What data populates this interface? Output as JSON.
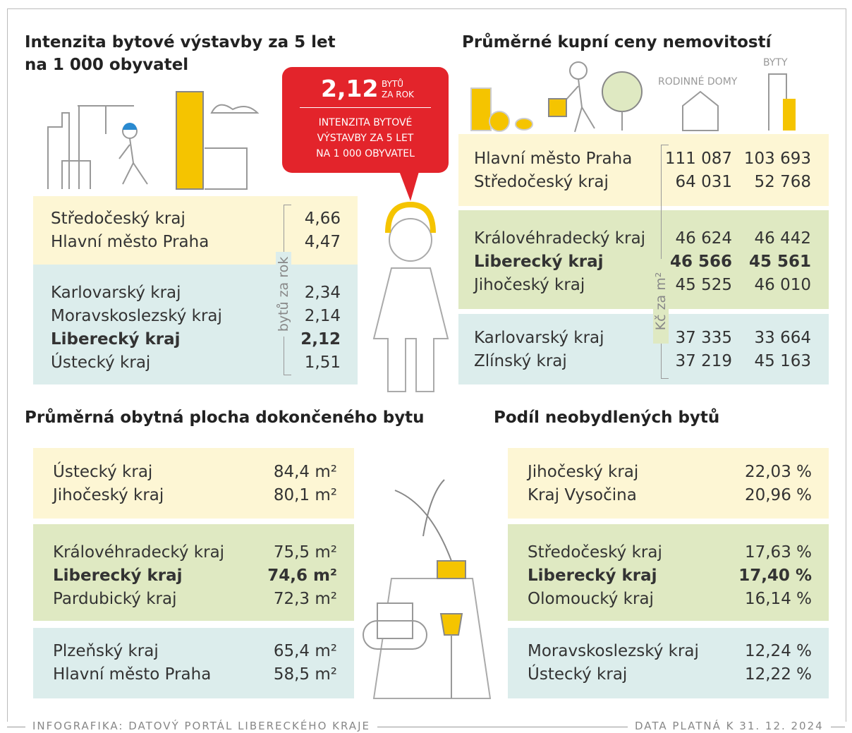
{
  "sections": [
    {
      "title": [
        "Intenzita bytové výstavby za 5 let",
        "na 1 000 obyvatel"
      ],
      "axis_label": "bytů za rok",
      "callout": {
        "value": "2,12",
        "unit": [
          "BYTŮ",
          "ZA ROK"
        ],
        "text": [
          "INTENZITA BYTOVÉ",
          "VÝSTAVBY ZA 5 LET",
          "NA 1 000 OBYVATEL"
        ]
      },
      "groups": [
        [
          {
            "name": "Středočeský kraj",
            "values": [
              "4,66"
            ]
          },
          {
            "name": "Hlavní město Praha",
            "values": [
              "4,47"
            ]
          }
        ],
        [
          {
            "name": "Karlovarský kraj",
            "values": [
              "2,34"
            ]
          },
          {
            "name": "Moravskoslezský kraj",
            "values": [
              "2,14"
            ]
          },
          {
            "name": "Liberecký kraj",
            "values": [
              "2,12"
            ],
            "bold": true
          },
          {
            "name": "Ústecký kraj",
            "values": [
              "1,51"
            ]
          }
        ]
      ]
    },
    {
      "title": [
        "Průměrné kupní ceny nemovitostí"
      ],
      "columns": [
        "RODINNÉ DOMY",
        "BYTY"
      ],
      "axis_label": "Kč za m²",
      "groups": [
        [
          {
            "name": "Hlavní město Praha",
            "values": [
              "111 087",
              "103 693"
            ]
          },
          {
            "name": "Středočeský kraj",
            "values": [
              "64 031",
              "52 768"
            ]
          }
        ],
        [
          {
            "name": "Královéhradecký kraj",
            "values": [
              "46 624",
              "46 442"
            ]
          },
          {
            "name": "Liberecký kraj",
            "values": [
              "46 566",
              "45 561"
            ],
            "bold": true
          },
          {
            "name": "Jihočeský kraj",
            "values": [
              "45 525",
              "46 010"
            ]
          }
        ],
        [
          {
            "name": "Karlovarský kraj",
            "values": [
              "37 335",
              "33 664"
            ]
          },
          {
            "name": "Zlínský kraj",
            "values": [
              "37 219",
              "45 163"
            ]
          }
        ]
      ]
    },
    {
      "title": [
        "Průměrná obytná plocha dokončeného bytu"
      ],
      "groups": [
        [
          {
            "name": "Ústecký kraj",
            "values": [
              "84,4 m²"
            ]
          },
          {
            "name": "Jihočeský kraj",
            "values": [
              "80,1 m²"
            ]
          }
        ],
        [
          {
            "name": "Královéhradecký kraj",
            "values": [
              "75,5 m²"
            ]
          },
          {
            "name": "Liberecký kraj",
            "values": [
              "74,6 m²"
            ],
            "bold": true
          },
          {
            "name": "Pardubický kraj",
            "values": [
              "72,3 m²"
            ]
          }
        ],
        [
          {
            "name": "Plzeňský kraj",
            "values": [
              "65,4 m²"
            ]
          },
          {
            "name": "Hlavní město Praha",
            "values": [
              "58,5 m²"
            ]
          }
        ]
      ]
    },
    {
      "title": [
        "Podíl neobydlených bytů"
      ],
      "groups": [
        [
          {
            "name": "Jihočeský kraj",
            "values": [
              "22,03 %"
            ]
          },
          {
            "name": "Kraj Vysočina",
            "values": [
              "20,96 %"
            ]
          }
        ],
        [
          {
            "name": "Středočeský kraj",
            "values": [
              "17,63 %"
            ]
          },
          {
            "name": "Liberecký kraj",
            "values": [
              "17,40 %"
            ],
            "bold": true
          },
          {
            "name": "Olomoucký kraj",
            "values": [
              "16,14 %"
            ]
          }
        ],
        [
          {
            "name": "Moravskoslezský kraj",
            "values": [
              "12,24 %"
            ]
          },
          {
            "name": "Ústecký kraj",
            "values": [
              "12,22 %"
            ]
          }
        ]
      ]
    }
  ],
  "footer": {
    "source": "INFOGRAFIKA: DATOVÝ PORTÁL LIBERECKÉHO KRAJE",
    "date": "DATA PLATNÁ K 31. 12. 2024"
  }
}
